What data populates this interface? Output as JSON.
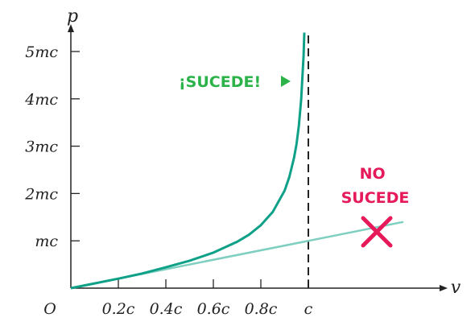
{
  "chart_data": {
    "type": "line",
    "ylabel": "p",
    "xlabel": "v",
    "origin_label": "O",
    "xlim": [
      0,
      1.4
    ],
    "ylim": [
      0,
      5.5
    ],
    "x_ticks": [
      {
        "value": 0.2,
        "label": "0.2c"
      },
      {
        "value": 0.4,
        "label": "0.4c"
      },
      {
        "value": 0.6,
        "label": "0.6c"
      },
      {
        "value": 0.8,
        "label": "0.8c"
      },
      {
        "value": 1.0,
        "label": "c"
      }
    ],
    "y_ticks": [
      {
        "value": 1,
        "label": "mc"
      },
      {
        "value": 2,
        "label": "2mc"
      },
      {
        "value": 3,
        "label": "3mc"
      },
      {
        "value": 4,
        "label": "4mc"
      },
      {
        "value": 5,
        "label": "5mc"
      }
    ],
    "asymptote_x": 1.0,
    "series": [
      {
        "color": "#0fa088",
        "formula": "p = mv / sqrt(1 - v^2/c^2)",
        "x": [
          0,
          0.1,
          0.2,
          0.3,
          0.4,
          0.5,
          0.6,
          0.7,
          0.75,
          0.8,
          0.85,
          0.9,
          0.92,
          0.94,
          0.95,
          0.96,
          0.97,
          0.98,
          0.983
        ],
        "y": [
          0,
          0.1,
          0.2,
          0.31,
          0.44,
          0.58,
          0.75,
          0.98,
          1.13,
          1.33,
          1.61,
          2.06,
          2.35,
          2.76,
          3.04,
          3.43,
          3.99,
          4.92,
          5.4
        ]
      },
      {
        "color": "#7fcfc0",
        "formula": "p = mv",
        "x": [
          0,
          1.4
        ],
        "y": [
          0,
          1.4
        ]
      }
    ],
    "annotations": [
      {
        "text": "¡SUCEDE!",
        "color": "#2bb34a",
        "arrow": "right-triangle"
      },
      {
        "text_lines": [
          "NO",
          "SUCEDE"
        ],
        "color": "#e6195a",
        "marker": "x"
      }
    ]
  }
}
